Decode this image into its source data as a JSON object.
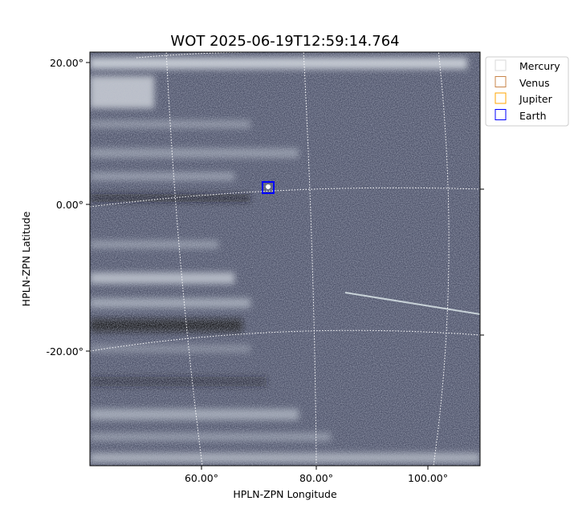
{
  "chart_data": {
    "type": "image",
    "title": "WOT 2025-06-19T12:59:14.764",
    "xlabel": "HPLN-ZPN Longitude",
    "ylabel": "HPLN-ZPN Latitude",
    "xlim": [
      40.3,
      109.2
    ],
    "ylim": [
      -36.3,
      21.4
    ],
    "x_ticks": [
      {
        "value": 60,
        "label": "60.00°"
      },
      {
        "value": 80,
        "label": "80.00°"
      },
      {
        "value": 100,
        "label": "100.00°"
      }
    ],
    "y_ticks": [
      {
        "value": 20,
        "label": "20.00°"
      },
      {
        "value": 0,
        "label": "0.00°"
      },
      {
        "value": -20,
        "label": "-20.00°"
      }
    ],
    "grid": true,
    "colormap": "bone",
    "legend": {
      "placement": "outside-top-right",
      "entries": [
        {
          "name": "Mercury",
          "color": "#d9d9d9"
        },
        {
          "name": "Venus",
          "color": "#c8844a"
        },
        {
          "name": "Jupiter",
          "color": "#ffa500"
        },
        {
          "name": "Earth",
          "color": "#0000ff"
        }
      ]
    },
    "markers": [
      {
        "name": "Earth",
        "lon": 71.5,
        "lat": 2.3,
        "color": "#0000ff"
      }
    ]
  }
}
